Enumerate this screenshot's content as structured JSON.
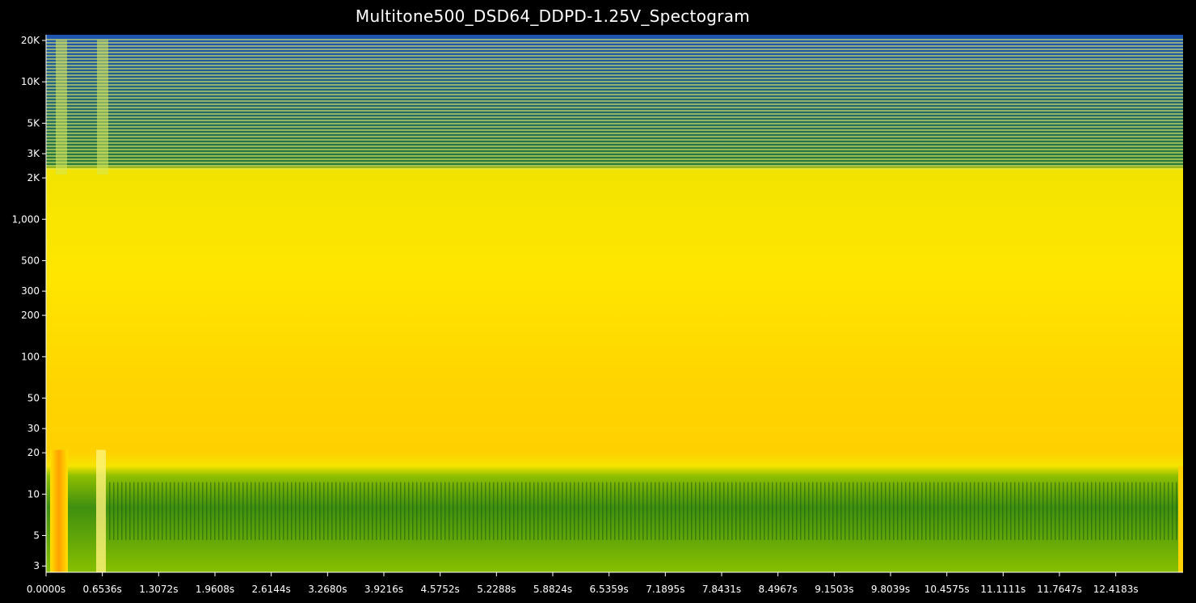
{
  "chart_data": {
    "type": "heatmap",
    "title": "Multitone500_DSD64_DDPD-1.25V_Spectogram",
    "xlabel": "",
    "ylabel": "",
    "y_scale": "log",
    "ylim": [
      2.7,
      22000
    ],
    "xlim": [
      0,
      13.2
    ],
    "y_ticks": [
      {
        "label": "20K",
        "value": 20000
      },
      {
        "label": "10K",
        "value": 10000
      },
      {
        "label": "5K",
        "value": 5000
      },
      {
        "label": "3K",
        "value": 3000
      },
      {
        "label": "2K",
        "value": 2000
      },
      {
        "label": "1,000",
        "value": 1000
      },
      {
        "label": "500",
        "value": 500
      },
      {
        "label": "300",
        "value": 300
      },
      {
        "label": "200",
        "value": 200
      },
      {
        "label": "100",
        "value": 100
      },
      {
        "label": "50",
        "value": 50
      },
      {
        "label": "30",
        "value": 30
      },
      {
        "label": "20",
        "value": 20
      },
      {
        "label": "10",
        "value": 10
      },
      {
        "label": "5",
        "value": 5
      },
      {
        "label": "3",
        "value": 3
      }
    ],
    "x_ticks": [
      {
        "label": "0.0000s",
        "value": 0
      },
      {
        "label": "0.6536s",
        "value": 0.6536
      },
      {
        "label": "1.3072s",
        "value": 1.3072
      },
      {
        "label": "1.9608s",
        "value": 1.9608
      },
      {
        "label": "2.6144s",
        "value": 2.6144
      },
      {
        "label": "3.2680s",
        "value": 3.268
      },
      {
        "label": "3.9216s",
        "value": 3.9216
      },
      {
        "label": "4.5752s",
        "value": 4.5752
      },
      {
        "label": "5.2288s",
        "value": 5.2288
      },
      {
        "label": "5.8824s",
        "value": 5.8824
      },
      {
        "label": "6.5359s",
        "value": 6.5359
      },
      {
        "label": "7.1895s",
        "value": 7.1895
      },
      {
        "label": "7.8431s",
        "value": 7.8431
      },
      {
        "label": "8.4967s",
        "value": 8.4967
      },
      {
        "label": "9.1503s",
        "value": 9.1503
      },
      {
        "label": "9.8039s",
        "value": 9.8039
      },
      {
        "label": "10.4575s",
        "value": 10.4575
      },
      {
        "label": "11.1111s",
        "value": 11.1111
      },
      {
        "label": "11.7647s",
        "value": 11.7647
      },
      {
        "label": "12.4183s",
        "value": 12.4183
      }
    ],
    "regions": [
      {
        "name": "high-band",
        "f_min": 2300,
        "f_max": 22000,
        "color": "#1f55b0"
      },
      {
        "name": "mid-band",
        "f_min": 16,
        "f_max": 2300,
        "color": "#ffe600"
      },
      {
        "name": "low-band",
        "f_min": 2.7,
        "f_max": 16,
        "color": "#6faa00"
      }
    ],
    "colors": {
      "blue": "#1f55b0",
      "green": "#2f8a1a",
      "yellow": "#ffe600",
      "orange": "#ffb000",
      "background": "#000000"
    },
    "grid": false,
    "legend": "none"
  }
}
